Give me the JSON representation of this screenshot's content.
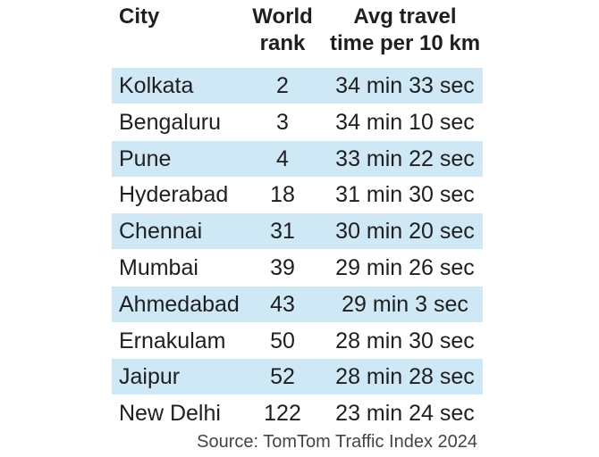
{
  "chart_data": {
    "type": "table",
    "columns": [
      "City",
      "World rank",
      "Avg travel time per 10 km"
    ],
    "header": {
      "city": "City",
      "rank_line1": "World",
      "rank_line2": "rank",
      "time_line1": "Avg travel",
      "time_line2": "time per 10 km"
    },
    "rows": [
      {
        "city": "Kolkata",
        "rank": "2",
        "time": "34 min 33 sec"
      },
      {
        "city": "Bengaluru",
        "rank": "3",
        "time": "34 min 10 sec"
      },
      {
        "city": "Pune",
        "rank": "4",
        "time": "33 min 22 sec"
      },
      {
        "city": "Hyderabad",
        "rank": "18",
        "time": "31 min 30 sec"
      },
      {
        "city": "Chennai",
        "rank": "31",
        "time": "30 min 20 sec"
      },
      {
        "city": "Mumbai",
        "rank": "39",
        "time": "29 min 26 sec"
      },
      {
        "city": "Ahmedabad",
        "rank": "43",
        "time": "29 min 3 sec"
      },
      {
        "city": "Ernakulam",
        "rank": "50",
        "time": "28 min 30 sec"
      },
      {
        "city": "Jaipur",
        "rank": "52",
        "time": "28 min 28 sec"
      },
      {
        "city": "New Delhi",
        "rank": "122",
        "time": "23 min 24 sec"
      }
    ],
    "source": "Source: TomTom Traffic Index 2024"
  },
  "colors": {
    "shaded_row": "#cfe8f6",
    "text": "#1f1f1f"
  }
}
